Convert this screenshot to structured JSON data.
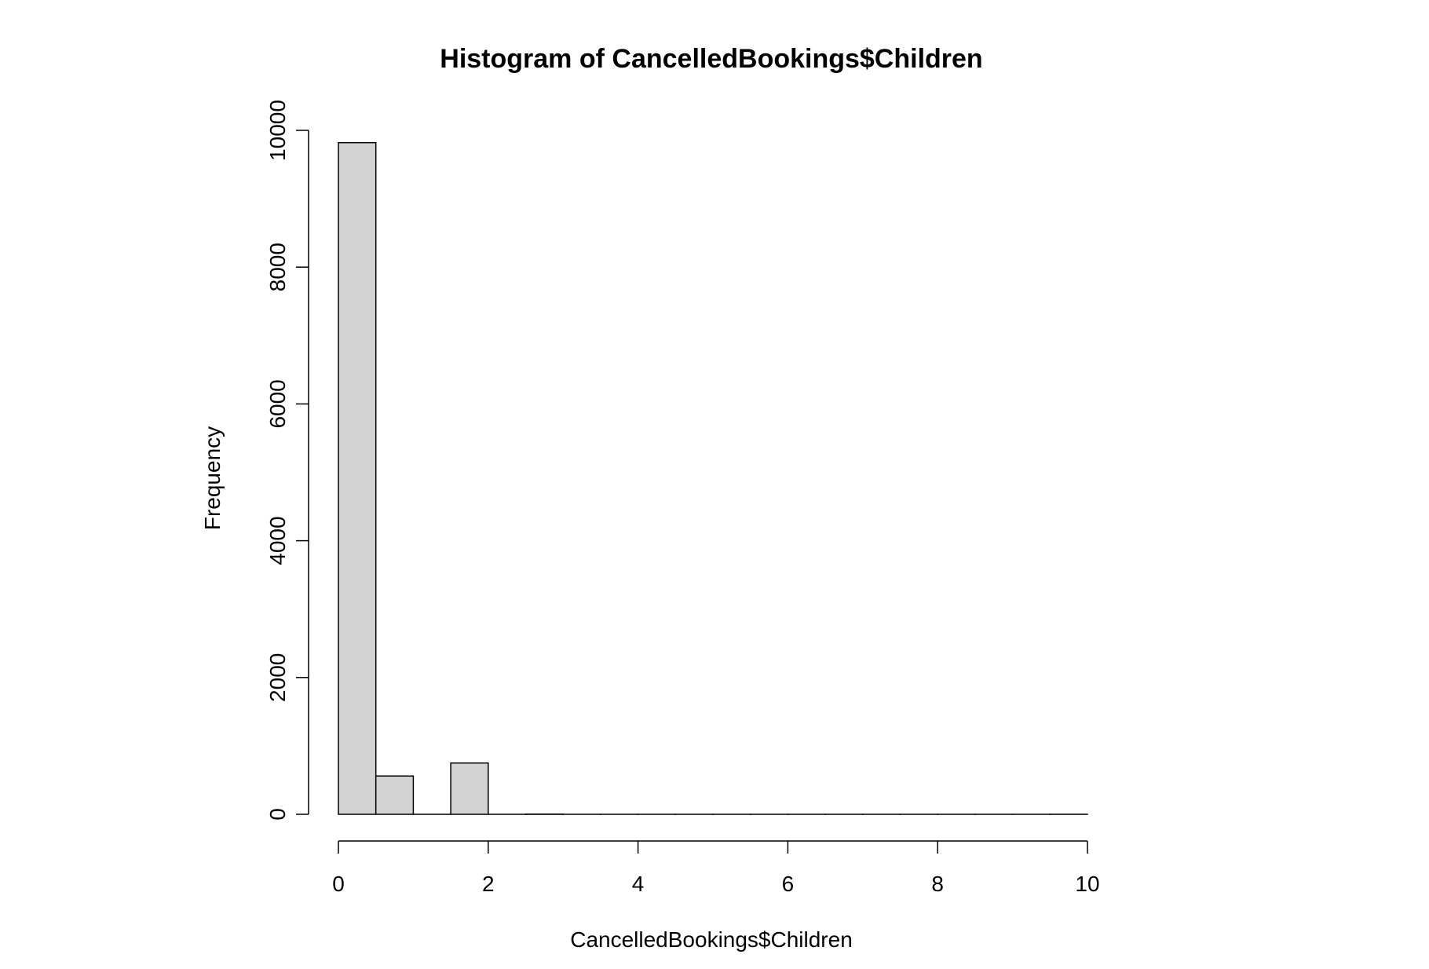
{
  "chart_data": {
    "type": "bar",
    "title": "Histogram of CancelledBookings$Children",
    "xlabel": "CancelledBookings$Children",
    "ylabel": "Frequency",
    "xlim": [
      0,
      10
    ],
    "ylim": [
      0,
      10000
    ],
    "x_ticks": [
      "0",
      "2",
      "4",
      "6",
      "8",
      "10"
    ],
    "y_ticks": [
      "0",
      "2000",
      "4000",
      "6000",
      "8000",
      "10000"
    ],
    "bin_edges": [
      0,
      0.5,
      1,
      1.5,
      2,
      2.5,
      3,
      3.5,
      4,
      4.5,
      5,
      5.5,
      6,
      6.5,
      7,
      7.5,
      8,
      8.5,
      9,
      9.5,
      10
    ],
    "values": [
      9820,
      560,
      0,
      750,
      0,
      3,
      0,
      0,
      0,
      0,
      0,
      0,
      0,
      0,
      0,
      0,
      0,
      0,
      0,
      1
    ],
    "bar_fill": "#d3d3d3",
    "bar_stroke": "#000000",
    "grid": false
  }
}
